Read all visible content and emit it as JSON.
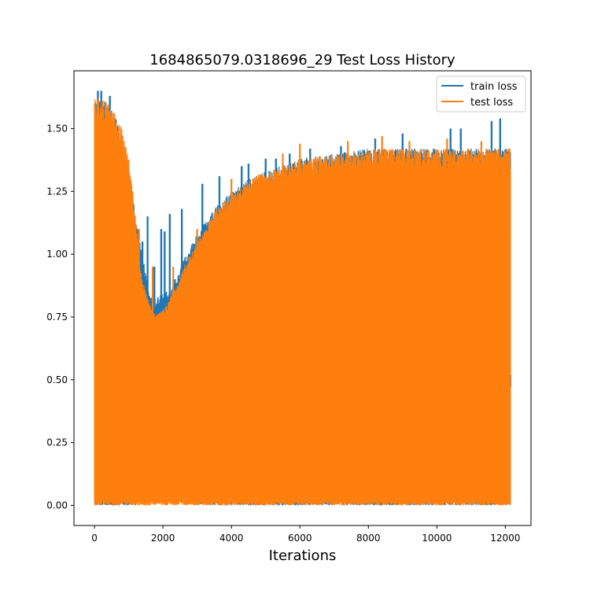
{
  "chart_data": {
    "type": "line",
    "title": "1684865079.0318696_29 Test Loss History",
    "xlabel": "Iterations",
    "ylabel": "",
    "xlim": [
      -600,
      12750
    ],
    "ylim": [
      -0.08,
      1.73
    ],
    "xticks": [
      0,
      2000,
      4000,
      6000,
      8000,
      10000,
      12000
    ],
    "xtick_labels": [
      "0",
      "2000",
      "4000",
      "6000",
      "8000",
      "10000",
      "12000"
    ],
    "yticks": [
      0.0,
      0.25,
      0.5,
      0.75,
      1.0,
      1.25,
      1.5
    ],
    "ytick_labels": [
      "0.00",
      "0.25",
      "0.50",
      "0.75",
      "1.00",
      "1.25",
      "1.50"
    ],
    "legend_position": "top-right",
    "grid": false,
    "series": [
      {
        "name": "train loss",
        "color": "#1f77b4",
        "envelope": {
          "x": [
            0,
            200,
            400,
            600,
            800,
            1000,
            1200,
            1400,
            1600,
            1800,
            2000,
            2200,
            2400,
            2600,
            3000,
            3500,
            4000,
            4500,
            5000,
            6000,
            7000,
            8000,
            9000,
            10000,
            11000,
            12000,
            12150
          ],
          "upper": [
            1.62,
            1.62,
            1.6,
            1.55,
            1.48,
            1.35,
            1.15,
            1.0,
            0.85,
            0.82,
            0.85,
            0.85,
            0.9,
            0.98,
            1.08,
            1.18,
            1.25,
            1.3,
            1.33,
            1.38,
            1.4,
            1.42,
            1.42,
            1.42,
            1.42,
            1.42,
            1.42
          ],
          "lower": [
            0.0,
            0.0,
            0.0,
            0.0,
            0.0,
            0.0,
            0.0,
            0.04,
            0.08,
            0.09,
            0.07,
            0.04,
            0.02,
            0.01,
            0.005,
            0.0,
            0.0,
            0.0,
            0.0,
            0.0,
            0.0,
            0.0,
            0.0,
            0.0,
            0.0,
            0.0,
            0.0
          ]
        },
        "spikes": [
          {
            "x": 100,
            "y": 1.65
          },
          {
            "x": 200,
            "y": 1.65
          },
          {
            "x": 450,
            "y": 1.63
          },
          {
            "x": 1400,
            "y": 1.05
          },
          {
            "x": 1550,
            "y": 1.15
          },
          {
            "x": 1750,
            "y": 0.95
          },
          {
            "x": 1950,
            "y": 1.1
          },
          {
            "x": 2050,
            "y": 1.09
          },
          {
            "x": 2200,
            "y": 1.16
          },
          {
            "x": 2350,
            "y": 0.9
          },
          {
            "x": 2550,
            "y": 1.18
          },
          {
            "x": 2900,
            "y": 1.0
          },
          {
            "x": 3150,
            "y": 1.28
          },
          {
            "x": 3650,
            "y": 1.31
          },
          {
            "x": 4300,
            "y": 1.35
          },
          {
            "x": 4500,
            "y": 1.36
          },
          {
            "x": 5000,
            "y": 1.38
          },
          {
            "x": 5300,
            "y": 1.38
          },
          {
            "x": 5700,
            "y": 1.4
          },
          {
            "x": 6300,
            "y": 1.42
          },
          {
            "x": 7200,
            "y": 1.43
          },
          {
            "x": 8200,
            "y": 1.46
          },
          {
            "x": 9000,
            "y": 1.48
          },
          {
            "x": 10400,
            "y": 1.5
          },
          {
            "x": 10700,
            "y": 1.5
          },
          {
            "x": 11600,
            "y": 1.53
          },
          {
            "x": 11850,
            "y": 1.54
          },
          {
            "x": 12150,
            "y": 0.52
          }
        ],
        "dips": [
          {
            "x": 1000,
            "y": 0.5
          },
          {
            "x": 1850,
            "y": 0.5
          },
          {
            "x": 2100,
            "y": 0.45
          },
          {
            "x": 3200,
            "y": 0.4
          },
          {
            "x": 3600,
            "y": 0.4
          },
          {
            "x": 5000,
            "y": 0.35
          },
          {
            "x": 6200,
            "y": 0.35
          },
          {
            "x": 7300,
            "y": 0.38
          },
          {
            "x": 9100,
            "y": 0.28
          },
          {
            "x": 9900,
            "y": 0.3
          },
          {
            "x": 11000,
            "y": 0.3
          },
          {
            "x": 11700,
            "y": 0.3
          }
        ]
      },
      {
        "name": "test loss",
        "color": "#ff7f0e",
        "envelope": {
          "x": [
            0,
            200,
            400,
            600,
            800,
            1000,
            1100,
            1200,
            1300,
            1400,
            1600,
            1800,
            2000,
            2200,
            2400,
            2600,
            3000,
            3500,
            4000,
            4500,
            5000,
            6000,
            7000,
            8000,
            9000,
            10000,
            11000,
            12000,
            12150
          ],
          "upper": [
            1.62,
            1.62,
            1.6,
            1.56,
            1.5,
            1.38,
            1.28,
            1.15,
            1.0,
            0.9,
            0.8,
            0.76,
            0.78,
            0.83,
            0.88,
            0.95,
            1.05,
            1.17,
            1.24,
            1.3,
            1.33,
            1.38,
            1.4,
            1.42,
            1.42,
            1.42,
            1.42,
            1.42,
            1.42
          ],
          "lower": [
            0.0,
            0.0,
            0.0,
            0.0,
            0.0,
            0.0,
            0.0,
            0.0,
            0.0,
            0.0,
            0.0,
            0.0,
            0.0,
            0.0,
            0.0,
            0.0,
            0.0,
            0.0,
            0.0,
            0.0,
            0.0,
            0.0,
            0.0,
            0.0,
            0.0,
            0.0,
            0.0,
            0.0,
            0.0
          ]
        },
        "spikes": [
          {
            "x": 1300,
            "y": 1.1
          },
          {
            "x": 1700,
            "y": 0.95
          },
          {
            "x": 2300,
            "y": 0.95
          },
          {
            "x": 3000,
            "y": 1.1
          },
          {
            "x": 4000,
            "y": 1.3
          },
          {
            "x": 5500,
            "y": 1.4
          },
          {
            "x": 6000,
            "y": 1.44
          },
          {
            "x": 7400,
            "y": 1.45
          },
          {
            "x": 8400,
            "y": 1.47
          },
          {
            "x": 9200,
            "y": 1.45
          },
          {
            "x": 10300,
            "y": 1.46
          },
          {
            "x": 11300,
            "y": 1.45
          },
          {
            "x": 12100,
            "y": 1.42
          }
        ]
      }
    ]
  }
}
